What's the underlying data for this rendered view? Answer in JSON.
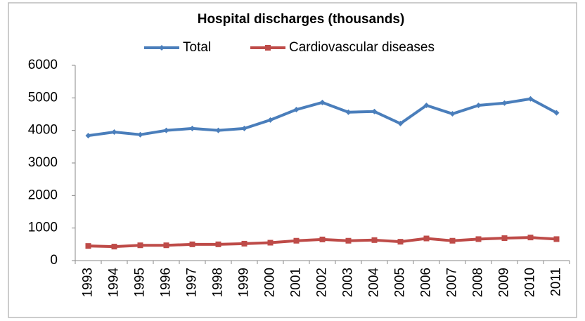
{
  "chart_data": {
    "type": "line",
    "title": "Hospital discharges (thousands)",
    "categories": [
      "1993",
      "1994",
      "1995",
      "1996",
      "1997",
      "1998",
      "1999",
      "2000",
      "2001",
      "2002",
      "2003",
      "2004",
      "2005",
      "2006",
      "2007",
      "2008",
      "2009",
      "2010",
      "2011"
    ],
    "series": [
      {
        "name": "Total",
        "color": "#4a7ebb",
        "marker": "diamond",
        "values": [
          3840,
          3950,
          3870,
          4000,
          4060,
          4000,
          4060,
          4320,
          4640,
          4860,
          4560,
          4580,
          4210,
          4770,
          4510,
          4770,
          4840,
          4970,
          4540
        ]
      },
      {
        "name": "Cardiovascular diseases",
        "color": "#be4b48",
        "marker": "square",
        "values": [
          450,
          430,
          470,
          470,
          500,
          500,
          520,
          550,
          610,
          650,
          610,
          630,
          580,
          680,
          610,
          660,
          690,
          710,
          660
        ]
      }
    ],
    "ylim": [
      0,
      6000
    ],
    "yticks": [
      0,
      1000,
      2000,
      3000,
      4000,
      5000,
      6000
    ],
    "grid": false,
    "legend": "top"
  }
}
